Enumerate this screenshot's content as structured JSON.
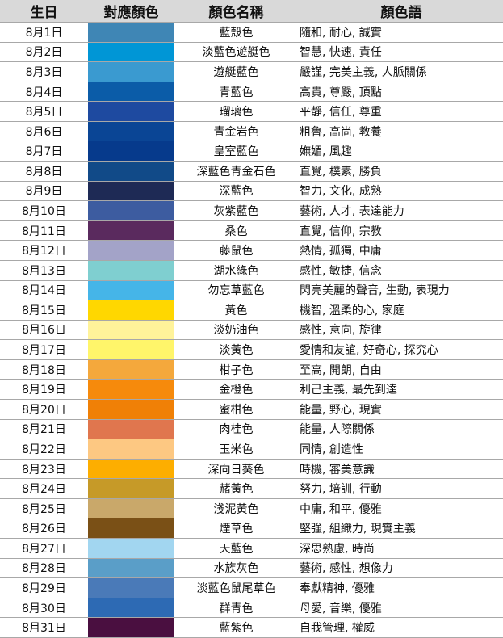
{
  "header": {
    "birthday": "生日",
    "color": "對應顏色",
    "color_name": "顏色名稱",
    "meaning": "顏色語"
  },
  "rows": [
    {
      "date": "8月1日",
      "color": "#3F86B5",
      "name": "藍殼色",
      "meaning": "隨和, 耐心, 誠實"
    },
    {
      "date": "8月2日",
      "color": "#0096D6",
      "name": "淡藍色遊艇色",
      "meaning": "智慧, 快速, 責任"
    },
    {
      "date": "8月3日",
      "color": "#3A9AD0",
      "name": "遊艇藍色",
      "meaning": "嚴謹, 完美主義, 人脈關係"
    },
    {
      "date": "8月4日",
      "color": "#0B5CA8",
      "name": "青藍色",
      "meaning": "高貴, 尊嚴, 頂點"
    },
    {
      "date": "8月5日",
      "color": "#1E4AA0",
      "name": "瑠璃色",
      "meaning": "平靜, 信任, 尊重"
    },
    {
      "date": "8月6日",
      "color": "#0A4595",
      "name": "青金岩色",
      "meaning": "粗魯, 高尚, 教養"
    },
    {
      "date": "8月7日",
      "color": "#063A8C",
      "name": "皇室藍色",
      "meaning": "嫵媚, 風趣"
    },
    {
      "date": "8月8日",
      "color": "#114A88",
      "name": "深藍色青金石色",
      "meaning": "直覺, 樸素, 勝負"
    },
    {
      "date": "8月9日",
      "color": "#1E2A55",
      "name": "深藍色",
      "meaning": "智力, 文化, 成熟"
    },
    {
      "date": "8月10日",
      "color": "#3D5CA0",
      "name": "灰紫藍色",
      "meaning": "藝術, 人才, 表達能力"
    },
    {
      "date": "8月11日",
      "color": "#5A2A5E",
      "name": "桑色",
      "meaning": "直覺, 信仰, 宗教"
    },
    {
      "date": "8月12日",
      "color": "#A3A3C8",
      "name": "藤鼠色",
      "meaning": "熱情, 孤獨, 中庸"
    },
    {
      "date": "8月13日",
      "color": "#7FCFD0",
      "name": "湖水綠色",
      "meaning": "感性, 敏捷, 信念"
    },
    {
      "date": "8月14日",
      "color": "#45B5E8",
      "name": "勿忘草藍色",
      "meaning": "閃亮美麗的聲音, 生動, 表現力"
    },
    {
      "date": "8月15日",
      "color": "#FFD700",
      "name": "黃色",
      "meaning": "機智, 溫柔的心, 家庭"
    },
    {
      "date": "8月16日",
      "color": "#FFF39A",
      "name": "淡奶油色",
      "meaning": "感性, 意向, 旋律"
    },
    {
      "date": "8月17日",
      "color": "#FFF56A",
      "name": "淡黃色",
      "meaning": "愛情和友誼, 好奇心, 探究心"
    },
    {
      "date": "8月18日",
      "color": "#F4A83C",
      "name": "柑子色",
      "meaning": "至高, 開朗, 自由"
    },
    {
      "date": "8月19日",
      "color": "#F68A0C",
      "name": "金橙色",
      "meaning": "利己主義, 最先到達"
    },
    {
      "date": "8月20日",
      "color": "#F08006",
      "name": "蜜柑色",
      "meaning": "能量, 野心, 現實"
    },
    {
      "date": "8月21日",
      "color": "#E0764E",
      "name": "肉桂色",
      "meaning": "能量, 人際關係"
    },
    {
      "date": "8月22日",
      "color": "#FDC882",
      "name": "玉米色",
      "meaning": "同情, 創造性"
    },
    {
      "date": "8月23日",
      "color": "#FDAE00",
      "name": "深向日葵色",
      "meaning": "時機, 審美意識"
    },
    {
      "date": "8月24日",
      "color": "#C69A28",
      "name": "赭黃色",
      "meaning": "努力, 培訓, 行動"
    },
    {
      "date": "8月25日",
      "color": "#C9A86A",
      "name": "淺泥黃色",
      "meaning": "中庸, 和平, 優雅"
    },
    {
      "date": "8月26日",
      "color": "#7A5016",
      "name": "煙草色",
      "meaning": "堅強, 組織力, 現實主義"
    },
    {
      "date": "8月27日",
      "color": "#A2D6F0",
      "name": "天藍色",
      "meaning": "深思熟慮, 時尚"
    },
    {
      "date": "8月28日",
      "color": "#5A9EC8",
      "name": "水族灰色",
      "meaning": "藝術, 感性, 想像力"
    },
    {
      "date": "8月29日",
      "color": "#4A7AB8",
      "name": "淡藍色鼠尾草色",
      "meaning": "奉獻精神, 優雅"
    },
    {
      "date": "8月30日",
      "color": "#2D6AB4",
      "name": "群青色",
      "meaning": "母愛, 音樂, 優雅"
    },
    {
      "date": "8月31日",
      "color": "#4A0F40",
      "name": "藍紫色",
      "meaning": "自我管理, 權威"
    }
  ]
}
